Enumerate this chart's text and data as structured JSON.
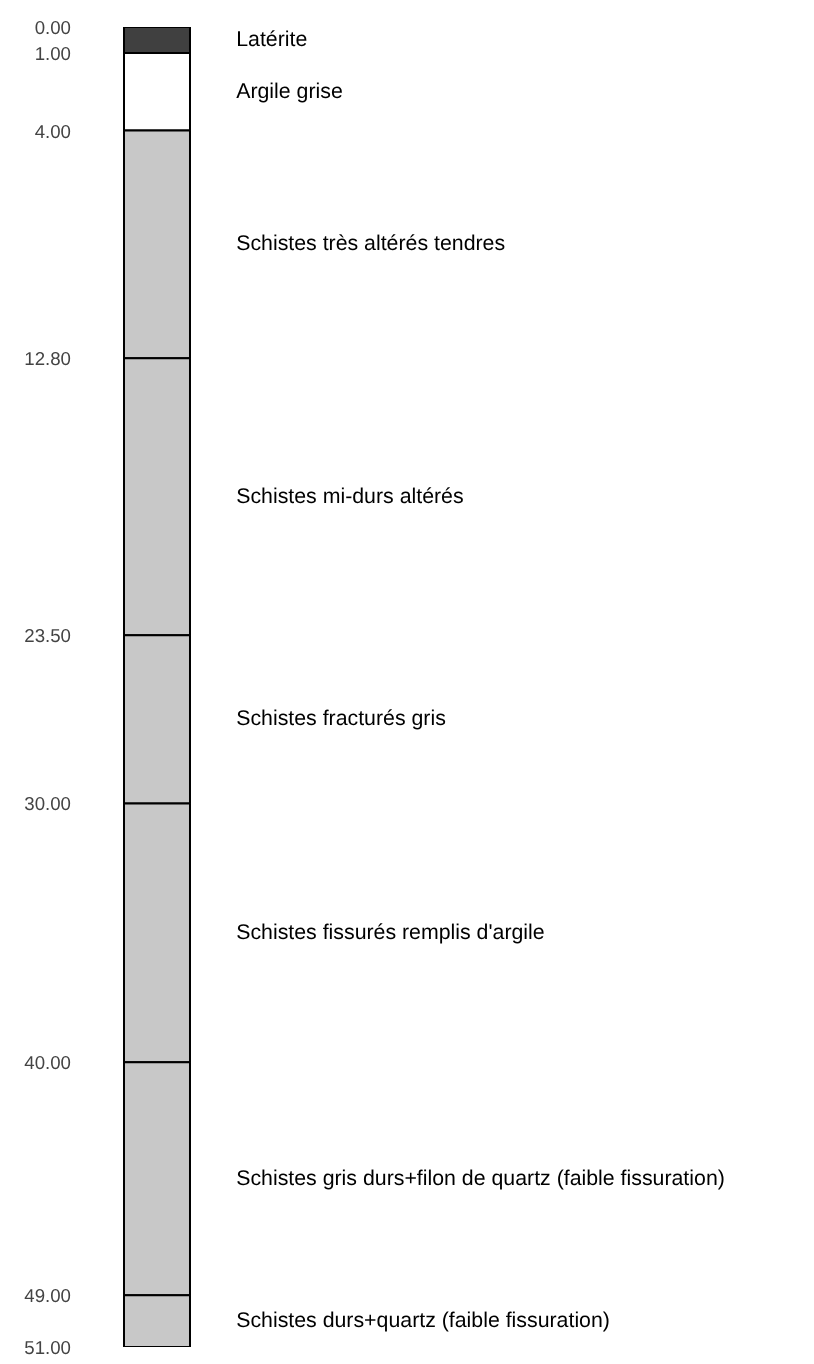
{
  "chart_data": {
    "type": "bar",
    "stacked": true,
    "categories": [
      null
    ],
    "series": [
      {
        "name": "Latérite",
        "color": "#404040",
        "values": [
          1
        ]
      },
      {
        "name": "Argile grise",
        "color": "#ffffff",
        "values": [
          3
        ]
      },
      {
        "name": "Schistes très altérés tendres",
        "color": "#c8c8c8",
        "values": [
          8.8
        ]
      },
      {
        "name": "Schistes mi-durs altérés",
        "color": "#c8c8c8",
        "values": [
          10.7
        ]
      },
      {
        "name": "Schistes fracturés gris",
        "color": "#c8c8c8",
        "values": [
          6.5
        ]
      },
      {
        "name": "Schistes fissurés remplis d'argile",
        "color": "#c8c8c8",
        "values": [
          10
        ]
      },
      {
        "name": "Schistes gris durs+filon de quartz (faible fissuration)",
        "color": "#c8c8c8",
        "values": [
          9
        ]
      },
      {
        "name": "Schistes durs+quartz (faible fissuration)",
        "color": "#c8c8c8",
        "values": [
          2
        ]
      }
    ],
    "ylim": [
      51,
      0
    ],
    "yticks": [
      {
        "value": 0,
        "label": "0.00"
      },
      {
        "value": 1,
        "label": "1.00"
      },
      {
        "value": 4,
        "label": "4.00"
      },
      {
        "value": 12.8,
        "label": "12.80"
      },
      {
        "value": 23.5,
        "label": "23.50"
      },
      {
        "value": 30,
        "label": "30.00"
      },
      {
        "value": 40,
        "label": "40.00"
      },
      {
        "value": 49,
        "label": "49.00"
      },
      {
        "value": 51,
        "label": "51.00"
      }
    ],
    "tick_labels": "y",
    "grid": false,
    "legend": false
  }
}
